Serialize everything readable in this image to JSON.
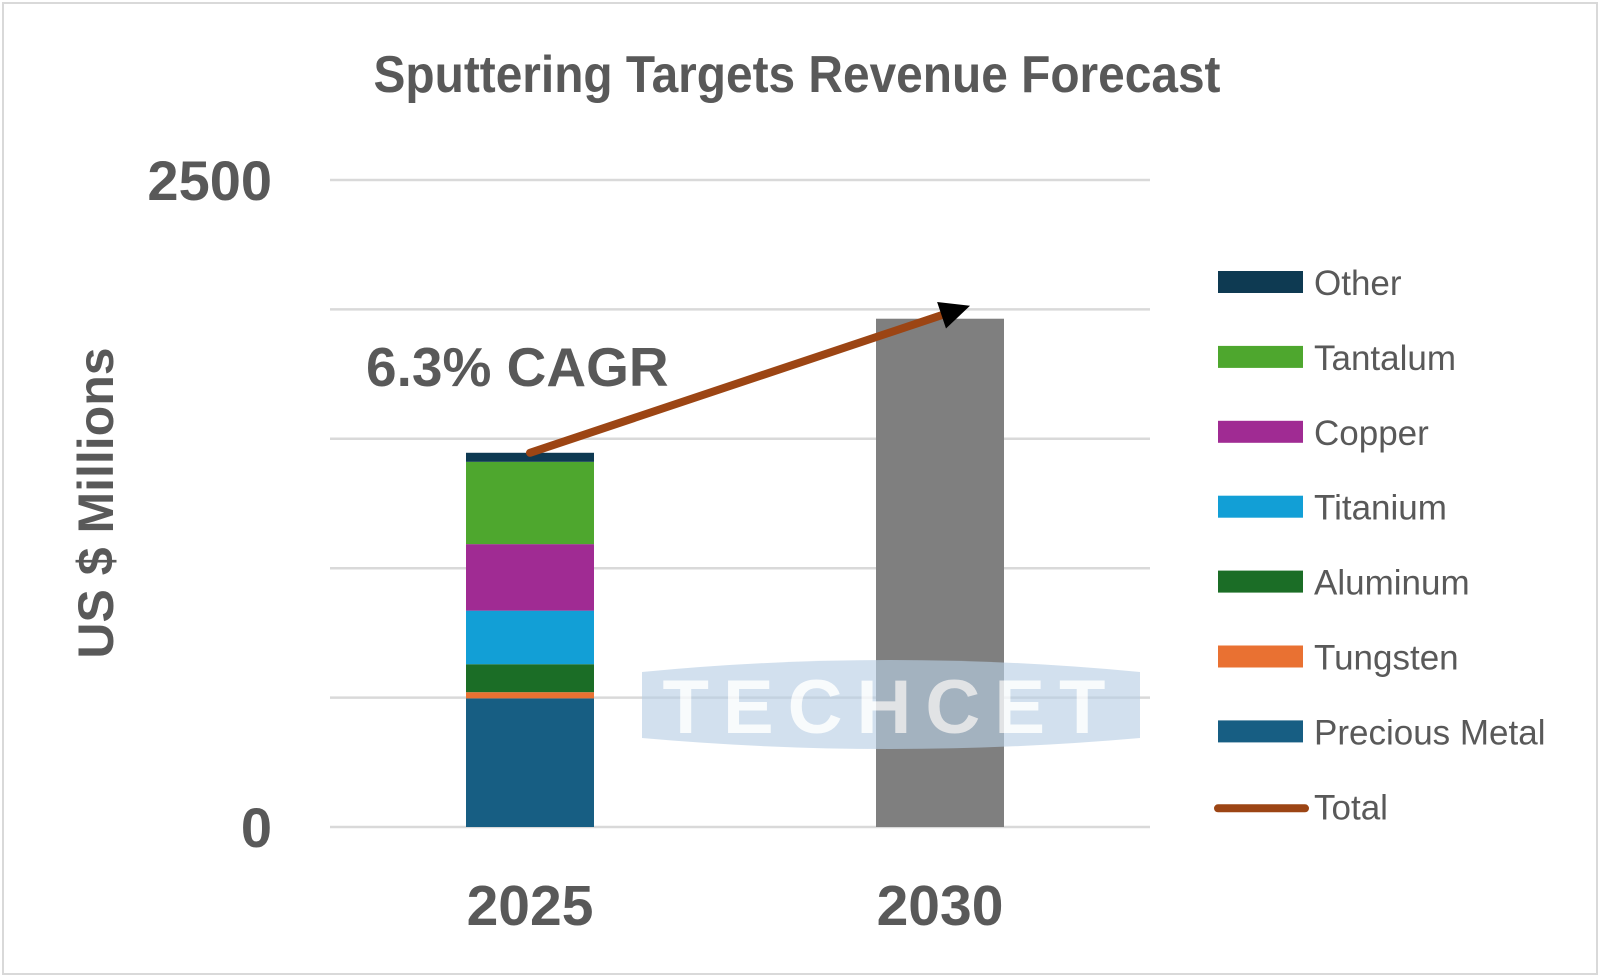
{
  "chart_data": {
    "type": "bar",
    "stacked": true,
    "title": "Sputtering Targets Revenue Forecast",
    "xlabel": "",
    "ylabel": "US $ Millions",
    "ylim": [
      0,
      2500
    ],
    "yticks": [
      0,
      2500
    ],
    "gridlines": [
      0,
      500,
      1000,
      1500,
      2000,
      2500
    ],
    "grid": true,
    "categories": [
      "2025",
      "2030"
    ],
    "series": [
      {
        "name": "Precious Metal",
        "color": "#175E83",
        "values": [
          497,
          null
        ]
      },
      {
        "name": "Tungsten",
        "color": "#E97132",
        "values": [
          24,
          null
        ]
      },
      {
        "name": "Aluminum",
        "color": "#1B6D26",
        "values": [
          108,
          null
        ]
      },
      {
        "name": "Titanium",
        "color": "#129FD6",
        "values": [
          207,
          null
        ]
      },
      {
        "name": "Copper",
        "color": "#A02B93",
        "values": [
          257,
          null
        ]
      },
      {
        "name": "Tantalum",
        "color": "#4EA72E",
        "values": [
          318,
          null
        ]
      },
      {
        "name": "Other",
        "color": "#0E3A52",
        "values": [
          35,
          null
        ]
      }
    ],
    "forecast_bar": {
      "category": "2030",
      "value": 1964,
      "color": "#7F7F7F"
    },
    "total_line": {
      "name": "Total",
      "color": "#9C4514",
      "from": {
        "category": "2025",
        "value": 1446
      },
      "to": {
        "category": "2030",
        "value": 1964
      },
      "arrow": true
    },
    "annotations": [
      {
        "text": "6.3% CAGR"
      }
    ],
    "legend": {
      "position": "right",
      "entries": [
        "Other",
        "Tantalum",
        "Copper",
        "Titanium",
        "Aluminum",
        "Tungsten",
        "Precious Metal",
        "Total"
      ]
    },
    "watermark": "TECHCET"
  }
}
